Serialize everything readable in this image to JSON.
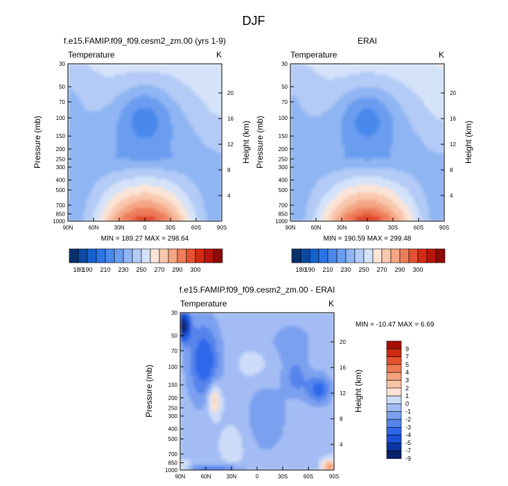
{
  "figure": {
    "title": "DJF"
  },
  "palette": {
    "abs": [
      "#08306b",
      "#0b4aa0",
      "#1461cf",
      "#2c74e6",
      "#4a88ec",
      "#6a9df0",
      "#8fb5f3",
      "#b3cbf6",
      "#d4e3f9",
      "#fbe4d6",
      "#f8c8ae",
      "#f4a582",
      "#ee7d5b",
      "#e45233",
      "#d42a14",
      "#b8150c",
      "#8e0a06"
    ],
    "diff": [
      "#08206b",
      "#0a35a0",
      "#1a4fd6",
      "#2f67ea",
      "#5484ec",
      "#7ba0f0",
      "#a3bdf4",
      "#cddcf8",
      "#fbe2d2",
      "#f8c2a6",
      "#f4a07e",
      "#ee7a55",
      "#e4522f",
      "#cf2a12",
      "#a40e06"
    ]
  },
  "chart_data": [
    {
      "type": "contour",
      "id": "model",
      "title": "f.e15.FAMIP.f09_f09.cesm2_zm.00 (yrs 1-9)",
      "left_label": "Temperature",
      "right_label": "K",
      "ylabel": "Pressure (mb)",
      "y2label": "Height (km)",
      "x_ticks": [
        "90N",
        "60N",
        "30N",
        "0",
        "30S",
        "60S",
        "90S"
      ],
      "p_ticks": [
        30,
        50,
        70,
        100,
        150,
        200,
        250,
        300,
        400,
        500,
        700,
        850,
        1000
      ],
      "h_ticks": [
        4,
        8,
        12,
        16,
        20
      ],
      "min": 189.27,
      "max": 298.64,
      "stats": "MIN = 189.27  MAX = 298.64",
      "levels": [
        180,
        185,
        190,
        200,
        210,
        220,
        230,
        240,
        250,
        260,
        270,
        280,
        290,
        295,
        300,
        305
      ]
    },
    {
      "type": "contour",
      "id": "obs",
      "title": "ERAI",
      "left_label": "Temperature",
      "right_label": "K",
      "ylabel": "Pressure (mb)",
      "y2label": "Height (km)",
      "x_ticks": [
        "90N",
        "60N",
        "30N",
        "0",
        "30S",
        "60S",
        "90S"
      ],
      "p_ticks": [
        30,
        50,
        70,
        100,
        150,
        200,
        250,
        300,
        400,
        500,
        700,
        850,
        1000
      ],
      "h_ticks": [
        4,
        8,
        12,
        16,
        20
      ],
      "min": 190.59,
      "max": 299.48,
      "stats": "MIN = 190.59  MAX = 299.48",
      "levels": [
        180,
        185,
        190,
        200,
        210,
        220,
        230,
        240,
        250,
        260,
        270,
        280,
        290,
        295,
        300,
        305
      ]
    },
    {
      "type": "contour",
      "id": "diff",
      "title": "f.e15.FAMIP.f09_f09.cesm2_zm.00 - ERAI",
      "left_label": "Temperature",
      "right_label": "K",
      "ylabel": "Pressure (mb)",
      "y2label": "Height (km)",
      "x_ticks": [
        "90N",
        "60N",
        "30N",
        "0",
        "30S",
        "60S",
        "90S"
      ],
      "p_ticks": [
        30,
        50,
        70,
        100,
        150,
        200,
        250,
        300,
        400,
        500,
        700,
        850,
        1000
      ],
      "h_ticks": [
        4,
        8,
        12,
        16,
        20
      ],
      "min": -10.47,
      "max": 6.69,
      "stats": "MIN = -10.47  MAX =   6.69",
      "levels": [
        -9,
        -7,
        -5,
        -4,
        -3,
        -2,
        -1,
        0,
        1,
        2,
        3,
        4,
        5,
        7,
        9
      ]
    }
  ],
  "colorbars": {
    "abs_labels": [
      "180",
      "190",
      "210",
      "230",
      "250",
      "270",
      "290",
      "300"
    ],
    "diff_labels": [
      "9",
      "7",
      "5",
      "4",
      "3",
      "2",
      "1",
      "0",
      "-1",
      "-2",
      "-3",
      "-4",
      "-5",
      "-7",
      "-9"
    ]
  }
}
